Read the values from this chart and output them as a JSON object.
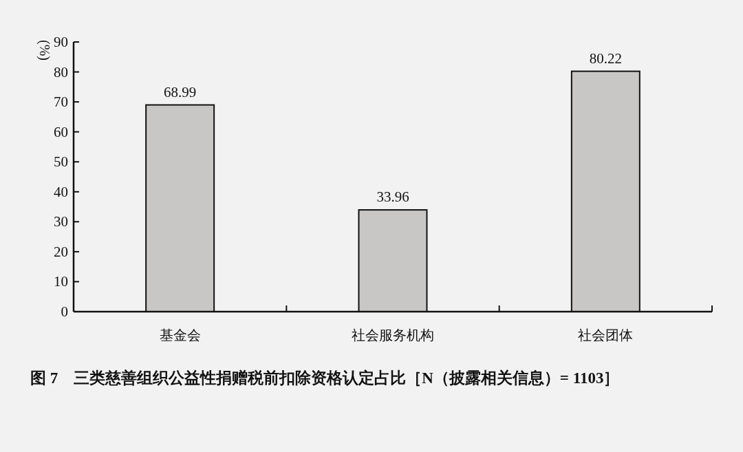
{
  "chart_data": {
    "type": "bar",
    "title": "图 7　三类慈善组织公益性捐赠税前扣除资格认定占比［N（披露相关信息）= 1103］",
    "ylabel": "(%)",
    "categories": [
      "基金会",
      "社会服务机构",
      "社会团体"
    ],
    "values": [
      68.99,
      33.96,
      80.22
    ],
    "color": "#c9c6c6",
    "ylim": [
      0,
      90
    ],
    "yticks": [
      0,
      10,
      20,
      30,
      40,
      50,
      60,
      70,
      80,
      90
    ],
    "data_labels": true
  }
}
